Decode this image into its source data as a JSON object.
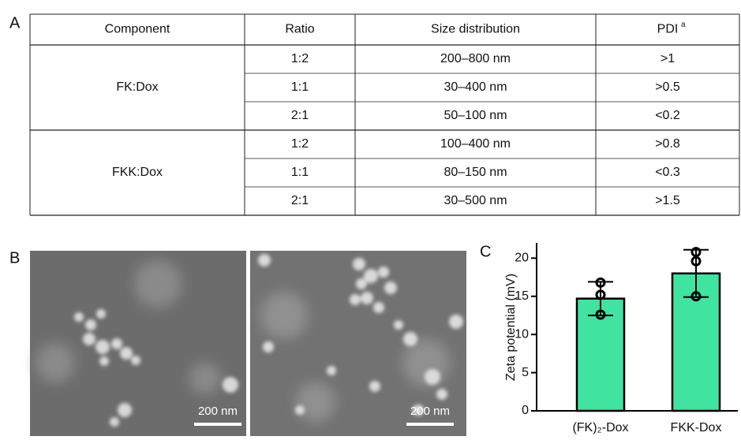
{
  "panels": [
    "A",
    "B",
    "C"
  ],
  "table": {
    "header": [
      "Component",
      "Ratio",
      "Size distribution",
      "PDI"
    ],
    "header_note": "a",
    "groups": [
      {
        "component": "FK:Dox",
        "rows": [
          [
            "1:2",
            "200–800 nm",
            ">1"
          ],
          [
            "1:1",
            "30–400 nm",
            ">0.5"
          ],
          [
            "2:1",
            "50–100 nm",
            "<0.2"
          ]
        ]
      },
      {
        "component": "FKK:Dox",
        "rows": [
          [
            "1:2",
            "100–400 nm",
            ">0.8"
          ],
          [
            "1:1",
            "80–150 nm",
            "<0.3"
          ],
          [
            "2:1",
            "30–500 nm",
            ">1.5"
          ]
        ]
      }
    ]
  },
  "images": [
    {
      "scale_label": "200 nm"
    },
    {
      "scale_label": "200 nm"
    }
  ],
  "chart_data": {
    "type": "bar",
    "ylabel": "Zeta potential (mV)",
    "categories": [
      "(FK)₂-Dox",
      "FKK-Dox"
    ],
    "values": [
      14.7,
      18.0
    ],
    "errors": [
      2.2,
      3.1
    ],
    "points": [
      [
        16.8,
        15.2,
        12.6
      ],
      [
        20.8,
        19.6,
        15.0
      ]
    ],
    "color": "#40e3a0",
    "ylim": [
      0,
      22
    ],
    "yticks": [
      0,
      5,
      10,
      15,
      20
    ]
  }
}
